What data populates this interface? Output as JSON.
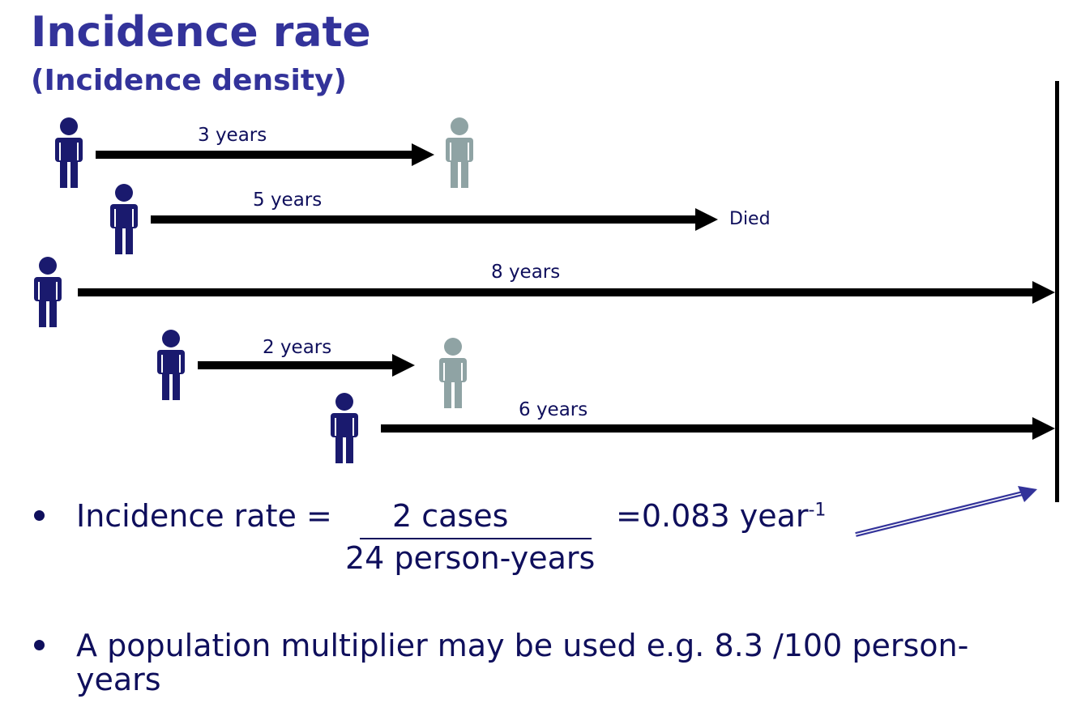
{
  "title": "Incidence rate",
  "subtitle": "(Incidence density)",
  "timelines": [
    {
      "duration": "3 years"
    },
    {
      "duration": "5 years",
      "outcome": "Died"
    },
    {
      "duration": "8 years"
    },
    {
      "duration": "2 years"
    },
    {
      "duration": "6 years"
    }
  ],
  "formula": {
    "lead": "Incidence rate =",
    "numerator": "2 cases",
    "denominator": "24 person-years",
    "result": "=0.083 year",
    "exponent": "-1"
  },
  "note": "A population multiplier may be used e.g. 8.3 /100 person-years",
  "colors": {
    "title": "#33339a",
    "person_active": "#1a1a6e",
    "person_case": "#8fa3a4",
    "text": "#0f0f5c"
  }
}
